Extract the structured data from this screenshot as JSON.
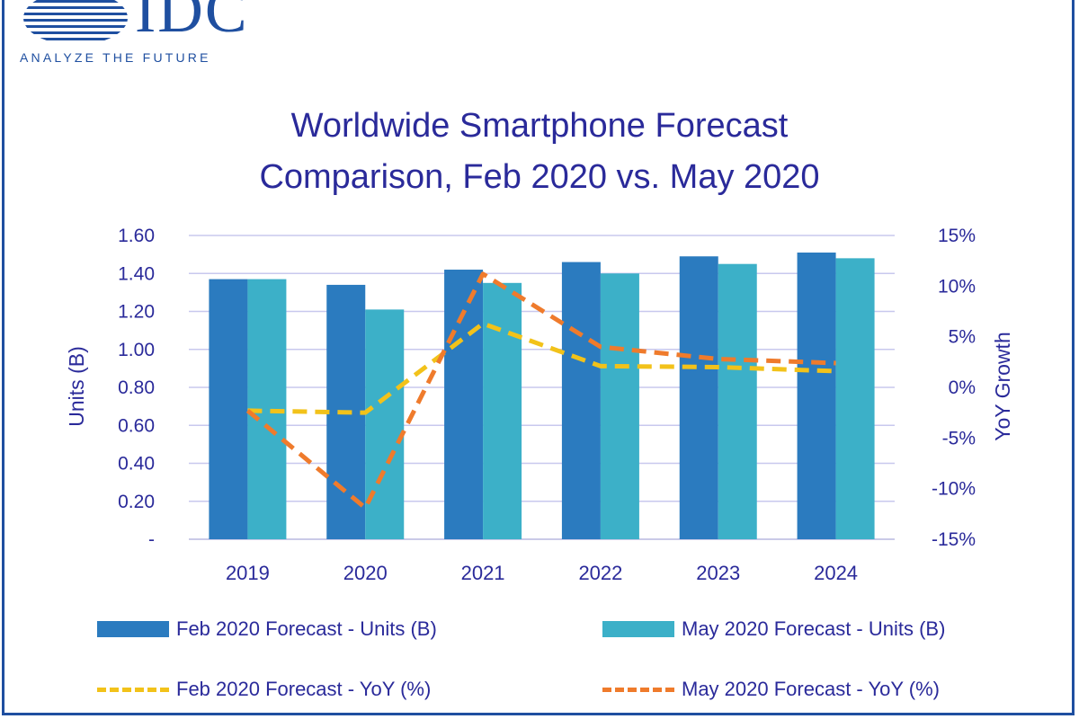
{
  "logo": {
    "name": "IDC",
    "tagline": "ANALYZE THE FUTURE",
    "icon": "globe-stripes-icon"
  },
  "colors": {
    "brand": "#1f4fa0",
    "text": "#2a2a9a",
    "feb_units": "#2b7bbf",
    "may_units": "#3cb0c8",
    "feb_yoy": "#f2c21a",
    "may_yoy": "#ef7b2c",
    "grid": "#c8c8ee"
  },
  "title_line1": "Worldwide Smartphone Forecast",
  "title_line2": "Comparison, Feb 2020 vs. May 2020",
  "chart_data": {
    "type": "bar",
    "title": "Worldwide Smartphone Forecast Comparison, Feb 2020 vs. May 2020",
    "categories": [
      "2019",
      "2020",
      "2021",
      "2022",
      "2023",
      "2024"
    ],
    "ylabel": "Units (B)",
    "ylabel_right": "YoY Growth",
    "ylim": [
      0,
      1.6
    ],
    "ylim_right": [
      -15,
      15
    ],
    "yticks": [
      "1.60",
      "1.40",
      "1.20",
      "1.00",
      "0.80",
      "0.60",
      "0.40",
      "0.20",
      "-"
    ],
    "yticks_right": [
      "15%",
      "10%",
      "5%",
      "0%",
      "-5%",
      "-10%",
      "-15%"
    ],
    "grid": true,
    "legend_position": "bottom",
    "series": [
      {
        "name": "Feb 2020 Forecast - Units (B)",
        "kind": "bar",
        "axis": "left",
        "values": [
          1.37,
          1.34,
          1.42,
          1.46,
          1.49,
          1.51
        ]
      },
      {
        "name": "May 2020 Forecast - Units (B)",
        "kind": "bar",
        "axis": "left",
        "values": [
          1.37,
          1.21,
          1.35,
          1.4,
          1.45,
          1.48
        ]
      },
      {
        "name": "Feb 2020 Forecast - YoY (%)",
        "kind": "line",
        "style": "dashed",
        "axis": "right",
        "values": [
          -2.3,
          -2.5,
          6.3,
          2.1,
          2.0,
          1.6
        ]
      },
      {
        "name": "May 2020 Forecast - YoY (%)",
        "kind": "line",
        "style": "dashed",
        "axis": "right",
        "values": [
          -2.3,
          -11.9,
          11.2,
          4.0,
          2.8,
          2.4
        ]
      }
    ]
  }
}
